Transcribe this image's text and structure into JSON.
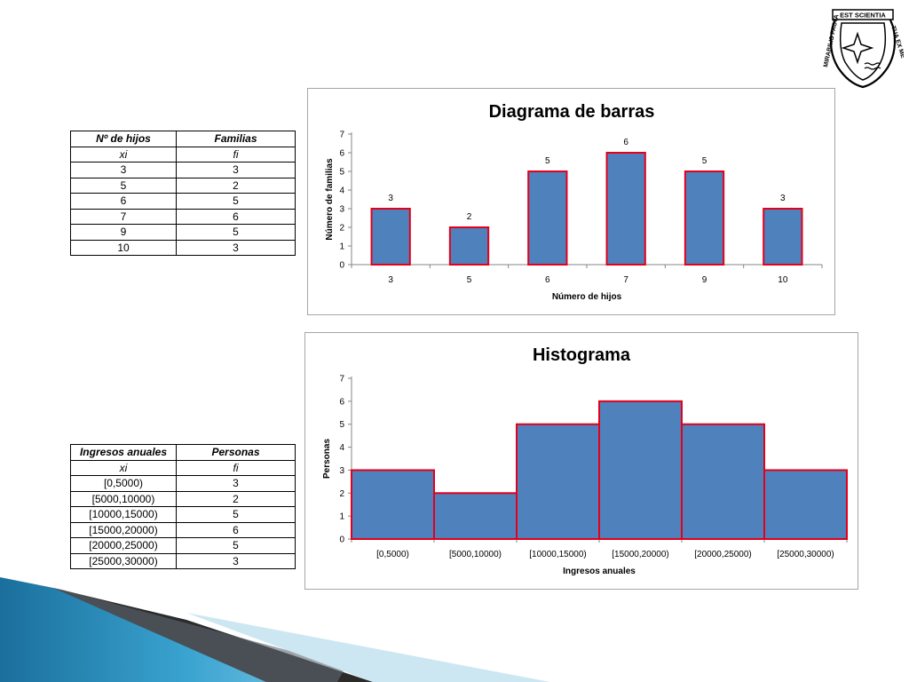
{
  "table1": {
    "headers": [
      "Nº de hijos",
      "Familias"
    ],
    "subheaders": [
      "xi",
      "fi"
    ],
    "rows": [
      [
        "3",
        "3"
      ],
      [
        "5",
        "2"
      ],
      [
        "6",
        "5"
      ],
      [
        "7",
        "6"
      ],
      [
        "9",
        "5"
      ],
      [
        "10",
        "3"
      ]
    ]
  },
  "table2": {
    "headers": [
      "Ingresos anuales",
      "Personas"
    ],
    "subheaders": [
      "xi",
      "fi"
    ],
    "rows": [
      [
        "[0,5000)",
        "3"
      ],
      [
        "[5000,10000)",
        "2"
      ],
      [
        "[10000,15000)",
        "5"
      ],
      [
        "[15000,20000)",
        "6"
      ],
      [
        "[20000,25000)",
        "5"
      ],
      [
        "[25000,30000)",
        "3"
      ]
    ]
  },
  "logo": {
    "text": "EST SCIENTIA MIRABILIS FACTA TUA EX ME"
  },
  "colors": {
    "bar_fill": "#4f81bd",
    "bar_edge": "#e3001b",
    "box_border": "#a6a6a6",
    "decor_blue": "#2a8fc0"
  },
  "chart_data": [
    {
      "type": "bar",
      "title": "Diagrama de barras",
      "xlabel": "Número de hijos",
      "ylabel": "Número de familias",
      "categories": [
        "3",
        "5",
        "6",
        "7",
        "9",
        "10"
      ],
      "values": [
        3,
        2,
        5,
        6,
        5,
        3
      ],
      "data_labels": [
        "3",
        "2",
        "5",
        "6",
        "5",
        "3"
      ],
      "ylim": [
        0,
        7
      ],
      "yticks": [
        "0",
        "1",
        "2",
        "3",
        "4",
        "5",
        "6",
        "7"
      ],
      "grid": false,
      "legend": "none"
    },
    {
      "type": "bar",
      "title": "Histograma",
      "xlabel": "Ingresos anuales",
      "ylabel": "Personas",
      "categories": [
        "[0,5000)",
        "[5000,10000)",
        "[10000,15000)",
        "[15000,20000)",
        "[20000,25000)",
        "[25000,30000)"
      ],
      "values": [
        3,
        2,
        5,
        6,
        5,
        3
      ],
      "ylim": [
        0,
        7
      ],
      "yticks": [
        "0",
        "1",
        "2",
        "3",
        "4",
        "5",
        "6",
        "7"
      ],
      "grid": false,
      "legend": "none"
    }
  ]
}
